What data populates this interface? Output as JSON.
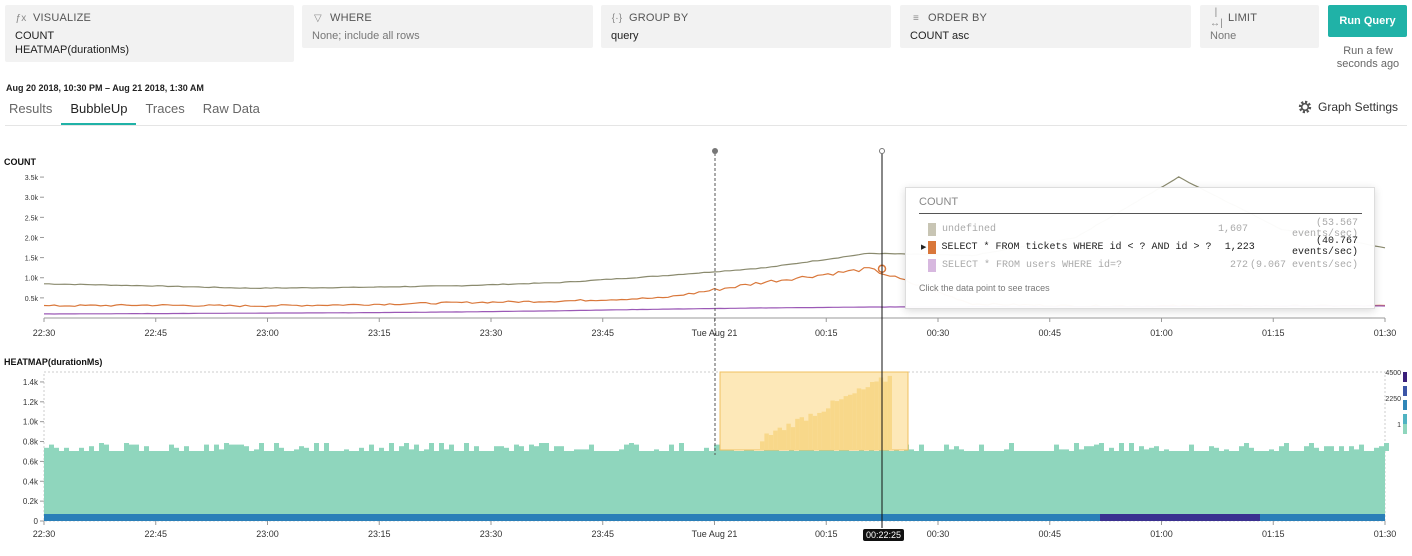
{
  "query": {
    "visualize": {
      "title": "VISUALIZE",
      "icon": "fx-icon",
      "lines": [
        "COUNT",
        "HEATMAP(durationMs)"
      ]
    },
    "where": {
      "title": "WHERE",
      "icon": "filter-icon",
      "value": "None; include all rows"
    },
    "group_by": {
      "title": "GROUP BY",
      "icon": "braces-icon",
      "value": "query"
    },
    "order_by": {
      "title": "ORDER BY",
      "icon": "sort-icon",
      "value": "COUNT asc"
    },
    "limit": {
      "title": "LIMIT",
      "icon": "limit-icon",
      "value": "None"
    },
    "run_label": "Run Query",
    "run_sub": "Run a few seconds ago"
  },
  "time_range": "Aug 20 2018, 10:30 PM  –  Aug 21 2018, 1:30 AM",
  "tabs": [
    {
      "label": "Results",
      "active": false
    },
    {
      "label": "BubbleUp",
      "active": true
    },
    {
      "label": "Traces",
      "active": false
    },
    {
      "label": "Raw Data",
      "active": false
    }
  ],
  "graph_settings_label": "Graph Settings",
  "count_chart": {
    "title": "COUNT",
    "y_ticks": [
      "3.5k",
      "3.0k",
      "2.5k",
      "2.0k",
      "1.5k",
      "1.0k",
      "0.5k"
    ],
    "x_ticks": [
      "22:30",
      "22:45",
      "23:00",
      "23:15",
      "23:30",
      "23:45",
      "Tue Aug 21",
      "00:15",
      "00:30",
      "00:45",
      "01:00",
      "01:15",
      "01:30"
    ]
  },
  "heatmap_chart": {
    "title": "HEATMAP(durationMs)",
    "y_ticks": [
      "1.4k",
      "1.2k",
      "1.0k",
      "0.8k",
      "0.6k",
      "0.4k",
      "0.2k",
      "0"
    ],
    "legend_ticks": [
      "4500",
      "2250",
      "1"
    ]
  },
  "tooltip": {
    "title": "COUNT",
    "rows": [
      {
        "label": "undefined",
        "count": "1,607",
        "rate": "(53.567 events/sec)",
        "color": "#c8c5b4",
        "state": "dim"
      },
      {
        "label": "SELECT * FROM tickets WHERE id < ? AND id > ?",
        "count": "1,223",
        "rate": "(40.767 events/sec)",
        "color": "#d9773a",
        "state": "hl"
      },
      {
        "label": "SELECT * FROM users WHERE id=?",
        "count": "272",
        "rate": "(9.067 events/sec)",
        "color": "#d7b8df",
        "state": "dim"
      }
    ],
    "footer": "Click the data point to see traces"
  },
  "cursor_time": "00:22:25",
  "colors": {
    "accent": "#20b2a7",
    "undefined_series": "#8a8a6e",
    "tickets_series": "#d9773a",
    "users_series": "#9b59b6",
    "heat": "#8fd6bd",
    "selection": "#fde8b8"
  },
  "chart_data": [
    {
      "type": "line",
      "title": "COUNT",
      "x": [
        "22:30",
        "22:45",
        "23:00",
        "23:15",
        "23:30",
        "23:45",
        "00:00",
        "00:15",
        "00:22",
        "00:30",
        "00:45",
        "01:00",
        "01:15",
        "01:30"
      ],
      "series": [
        {
          "values": [
            850,
            800,
            740,
            760,
            800,
            880,
            1050,
            1250,
            1607,
            1550,
            2000,
            3500,
            2200,
            1750
          ]
        },
        {
          "name": "SELECT * FROM tickets WHERE id < ? AND id > ?",
          "values": [
            300,
            320,
            300,
            330,
            380,
            420,
            500,
            900,
            1223,
            350,
            300,
            300,
            300,
            300
          ]
        },
        {
          "name": "SELECT * FROM users WHERE id=?",
          "values": [
            100,
            110,
            120,
            130,
            150,
            180,
            220,
            250,
            272,
            280,
            280,
            290,
            300,
            300
          ]
        }
      ],
      "ylim": [
        0,
        3800
      ]
    },
    {
      "type": "heatmap",
      "title": "HEATMAP(durationMs)",
      "x": [
        "22:30",
        "01:30"
      ],
      "ylim": [
        0,
        1500
      ],
      "color_range": [
        1,
        4500
      ]
    }
  ]
}
